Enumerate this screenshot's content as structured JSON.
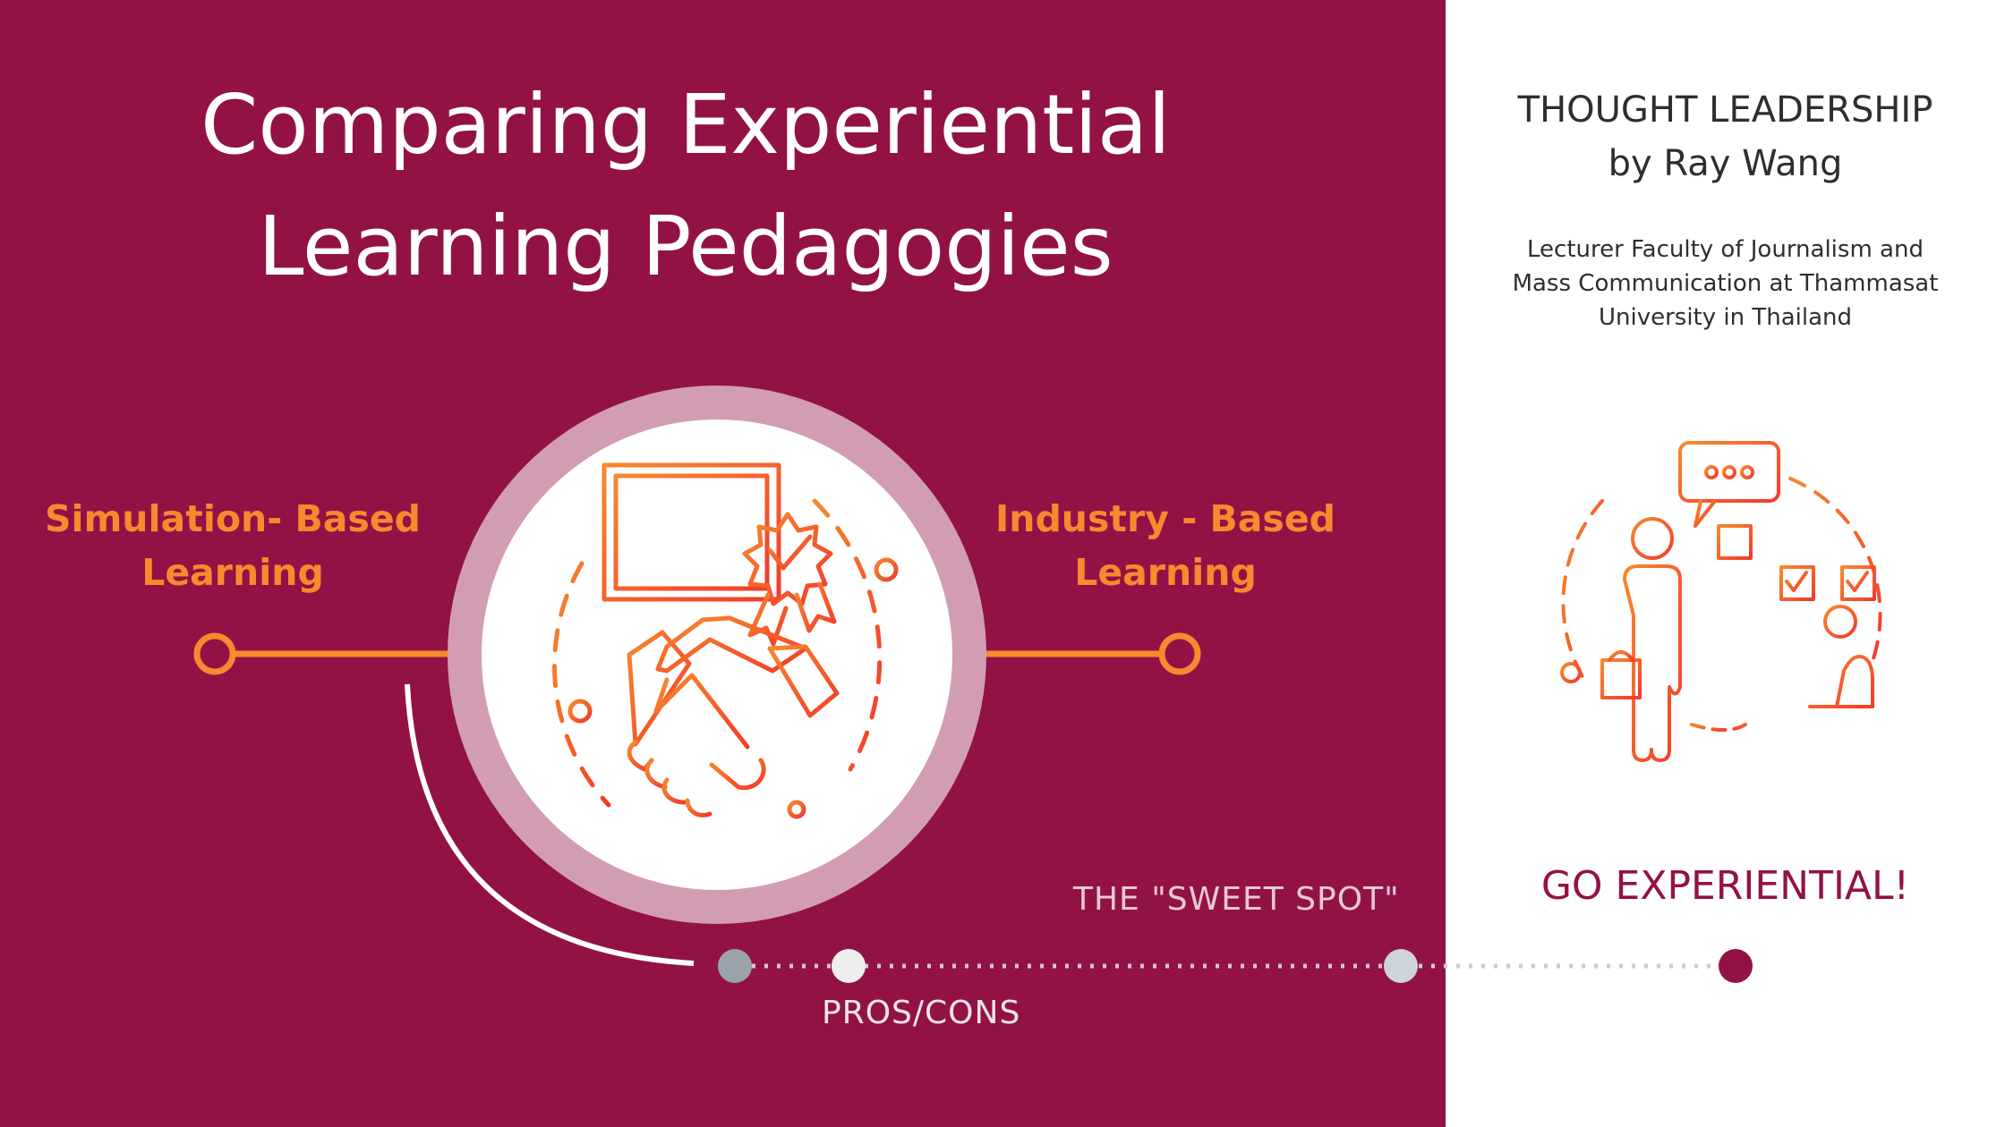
{
  "title": {
    "line1": "Comparing Experiential",
    "line2": "Learning Pedagogies"
  },
  "left_label": {
    "line1": "Simulation- Based",
    "line2": "Learning"
  },
  "right_label": {
    "line1": "Industry - Based",
    "line2": "Learning"
  },
  "timeline": {
    "sweet_spot": "THE \"SWEET SPOT\"",
    "pros_cons": "PROS/CONS"
  },
  "sidebar": {
    "heading_line1": "THOUGHT LEADERSHIP",
    "heading_line2": "by Ray Wang",
    "bio_line1": "Lecturer Faculty of Journalism and",
    "bio_line2": "Mass Communication at Thammasat",
    "bio_line3": "University in Thailand",
    "cta": "GO EXPERIENTIAL!"
  },
  "icons": {
    "center": "handshake-certificate-icon",
    "side": "people-meeting-icon"
  },
  "colors": {
    "maroon": "#921246",
    "orange": "#f7892e",
    "ring": "#d29db2",
    "icon_red": "#f5512b"
  }
}
